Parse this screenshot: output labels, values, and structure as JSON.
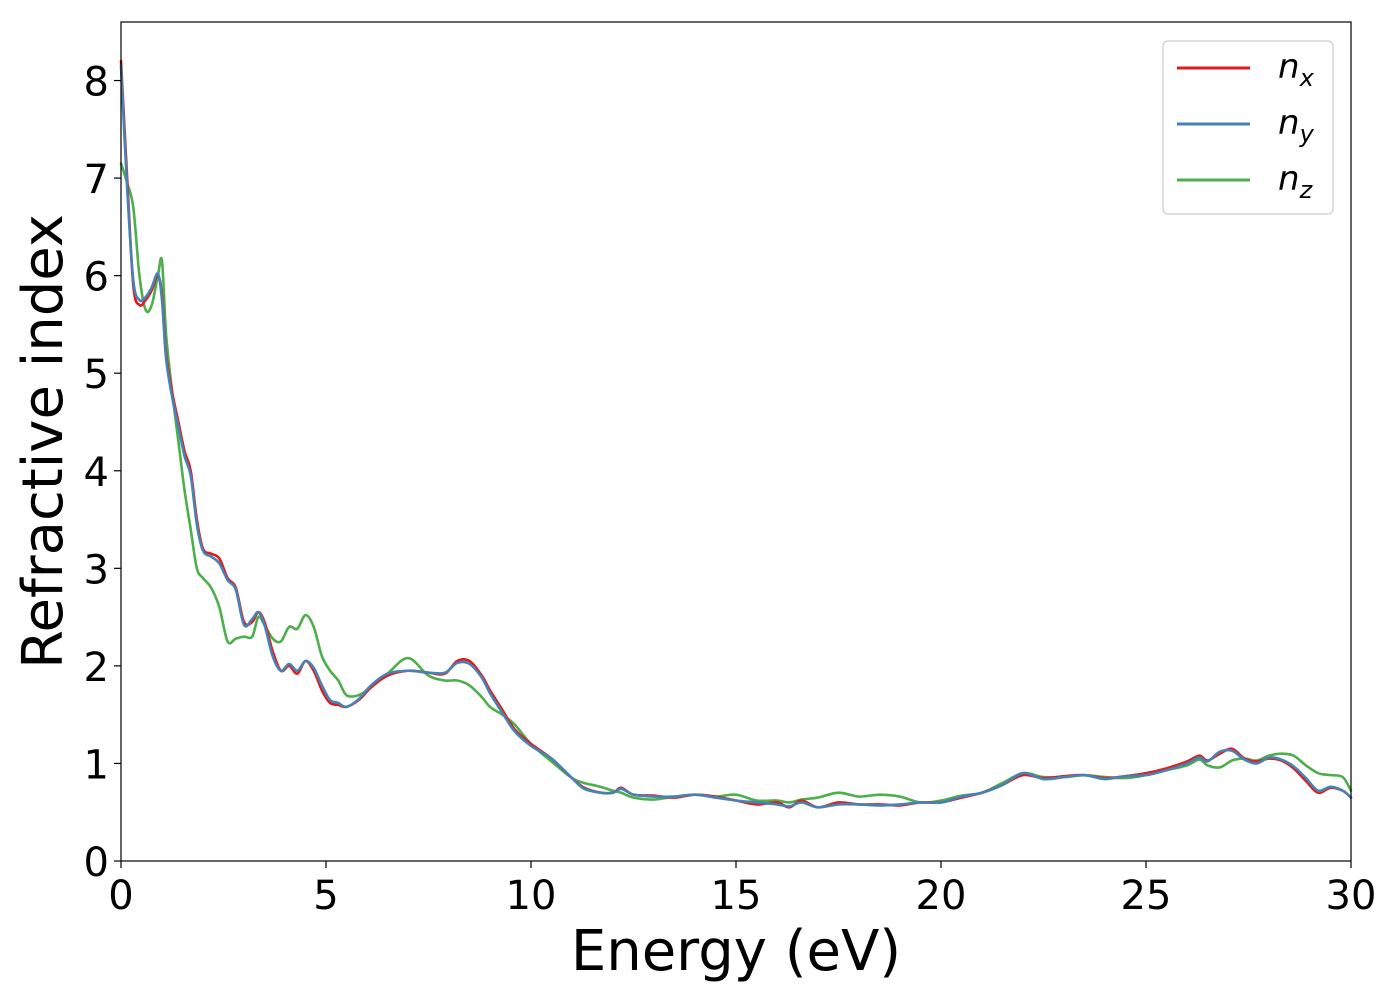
{
  "chart_data": {
    "type": "line",
    "title": "",
    "xlabel": "Energy (eV)",
    "ylabel": "Refractive index",
    "xlim": [
      0,
      30
    ],
    "ylim": [
      0,
      8.6
    ],
    "xticks": [
      0,
      5,
      10,
      15,
      20,
      25,
      30
    ],
    "yticks": [
      0,
      1,
      2,
      3,
      4,
      5,
      6,
      7,
      8
    ],
    "grid": false,
    "legend_position": "top-right",
    "series": [
      {
        "name": "n_x",
        "name_base": "n",
        "name_sub": "x",
        "color": "#e31a1c",
        "x": [
          0,
          0.15,
          0.3,
          0.45,
          0.6,
          0.75,
          0.9,
          1.0,
          1.1,
          1.25,
          1.4,
          1.55,
          1.7,
          1.85,
          2.0,
          2.2,
          2.4,
          2.6,
          2.8,
          3.0,
          3.2,
          3.35,
          3.5,
          3.7,
          3.9,
          4.1,
          4.3,
          4.5,
          4.7,
          4.9,
          5.1,
          5.3,
          5.5,
          5.8,
          6.1,
          6.5,
          7.0,
          7.5,
          7.9,
          8.2,
          8.5,
          8.8,
          9.0,
          9.3,
          9.6,
          10.0,
          10.5,
          11.0,
          11.3,
          11.7,
          12.0,
          12.2,
          12.5,
          13.0,
          13.5,
          14.0,
          14.5,
          15.0,
          15.5,
          16.0,
          16.3,
          16.6,
          17.0,
          17.5,
          18.0,
          18.5,
          19.0,
          19.5,
          20.0,
          20.5,
          21.0,
          21.5,
          22.0,
          22.5,
          23.0,
          23.5,
          24.0,
          24.5,
          25.0,
          25.5,
          26.0,
          26.3,
          26.5,
          26.8,
          27.1,
          27.4,
          27.7,
          28.0,
          28.3,
          28.6,
          28.9,
          29.2,
          29.5,
          29.8,
          30.0
        ],
        "y": [
          8.2,
          7.0,
          5.9,
          5.7,
          5.75,
          5.85,
          6.0,
          5.8,
          5.2,
          4.8,
          4.5,
          4.2,
          4.0,
          3.5,
          3.2,
          3.15,
          3.1,
          2.9,
          2.8,
          2.45,
          2.45,
          2.55,
          2.45,
          2.15,
          1.95,
          2.0,
          1.92,
          2.05,
          1.95,
          1.75,
          1.62,
          1.6,
          1.58,
          1.65,
          1.78,
          1.9,
          1.95,
          1.93,
          1.92,
          2.05,
          2.05,
          1.9,
          1.75,
          1.55,
          1.35,
          1.2,
          1.05,
          0.85,
          0.75,
          0.7,
          0.7,
          0.75,
          0.68,
          0.67,
          0.65,
          0.68,
          0.66,
          0.62,
          0.58,
          0.6,
          0.55,
          0.62,
          0.55,
          0.6,
          0.58,
          0.58,
          0.57,
          0.6,
          0.6,
          0.65,
          0.7,
          0.78,
          0.88,
          0.85,
          0.87,
          0.88,
          0.85,
          0.87,
          0.9,
          0.95,
          1.02,
          1.08,
          1.03,
          1.1,
          1.15,
          1.05,
          1.02,
          1.05,
          1.03,
          0.95,
          0.82,
          0.7,
          0.75,
          0.72,
          0.65
        ]
      },
      {
        "name": "n_y",
        "name_base": "n",
        "name_sub": "y",
        "color": "#4682b4",
        "x": [
          0,
          0.15,
          0.3,
          0.45,
          0.6,
          0.75,
          0.9,
          1.0,
          1.1,
          1.25,
          1.4,
          1.55,
          1.7,
          1.85,
          2.0,
          2.2,
          2.4,
          2.6,
          2.8,
          3.0,
          3.2,
          3.35,
          3.5,
          3.7,
          3.9,
          4.1,
          4.3,
          4.5,
          4.7,
          4.9,
          5.1,
          5.3,
          5.5,
          5.8,
          6.1,
          6.5,
          7.0,
          7.5,
          7.9,
          8.2,
          8.5,
          8.8,
          9.0,
          9.3,
          9.6,
          10.0,
          10.5,
          11.0,
          11.3,
          11.7,
          12.0,
          12.2,
          12.5,
          13.0,
          13.5,
          14.0,
          14.5,
          15.0,
          15.5,
          16.0,
          16.3,
          16.6,
          17.0,
          17.5,
          18.0,
          18.5,
          19.0,
          19.5,
          20.0,
          20.5,
          21.0,
          21.5,
          22.0,
          22.5,
          23.0,
          23.5,
          24.0,
          24.5,
          25.0,
          25.5,
          26.0,
          26.3,
          26.5,
          26.8,
          27.1,
          27.4,
          27.7,
          28.0,
          28.3,
          28.6,
          28.9,
          29.2,
          29.5,
          29.8,
          30.0
        ],
        "y": [
          8.15,
          6.9,
          5.95,
          5.75,
          5.78,
          5.88,
          6.02,
          5.75,
          5.15,
          4.75,
          4.45,
          4.15,
          3.95,
          3.45,
          3.18,
          3.12,
          3.05,
          2.88,
          2.78,
          2.42,
          2.48,
          2.55,
          2.42,
          2.1,
          1.95,
          2.02,
          1.95,
          2.05,
          1.98,
          1.8,
          1.65,
          1.62,
          1.58,
          1.66,
          1.8,
          1.92,
          1.95,
          1.93,
          1.93,
          2.03,
          2.02,
          1.88,
          1.72,
          1.52,
          1.33,
          1.18,
          1.05,
          0.85,
          0.74,
          0.7,
          0.7,
          0.74,
          0.68,
          0.66,
          0.66,
          0.68,
          0.65,
          0.62,
          0.6,
          0.58,
          0.56,
          0.6,
          0.55,
          0.58,
          0.58,
          0.57,
          0.58,
          0.6,
          0.6,
          0.66,
          0.7,
          0.78,
          0.9,
          0.84,
          0.86,
          0.88,
          0.84,
          0.87,
          0.88,
          0.93,
          1.0,
          1.06,
          1.02,
          1.12,
          1.13,
          1.04,
          1.0,
          1.06,
          1.04,
          0.97,
          0.85,
          0.72,
          0.76,
          0.72,
          0.65
        ]
      },
      {
        "name": "n_z",
        "name_base": "n",
        "name_sub": "z",
        "color": "#4daf4a",
        "x": [
          0,
          0.15,
          0.3,
          0.45,
          0.6,
          0.75,
          0.9,
          1.0,
          1.1,
          1.25,
          1.4,
          1.55,
          1.7,
          1.85,
          2.0,
          2.2,
          2.4,
          2.6,
          2.8,
          3.0,
          3.2,
          3.35,
          3.5,
          3.7,
          3.9,
          4.1,
          4.3,
          4.5,
          4.7,
          4.9,
          5.1,
          5.3,
          5.5,
          5.8,
          6.1,
          6.5,
          7.0,
          7.5,
          7.9,
          8.2,
          8.5,
          8.8,
          9.0,
          9.3,
          9.6,
          10.0,
          10.5,
          11.0,
          11.3,
          11.7,
          12.0,
          12.2,
          12.5,
          13.0,
          13.5,
          14.0,
          14.5,
          15.0,
          15.5,
          16.0,
          16.3,
          16.6,
          17.0,
          17.5,
          18.0,
          18.5,
          19.0,
          19.5,
          20.0,
          20.5,
          21.0,
          21.5,
          22.0,
          22.5,
          23.0,
          23.5,
          24.0,
          24.5,
          25.0,
          25.5,
          26.0,
          26.3,
          26.5,
          26.8,
          27.1,
          27.4,
          27.7,
          28.0,
          28.3,
          28.6,
          28.9,
          29.2,
          29.5,
          29.8,
          30.0
        ],
        "y": [
          7.15,
          6.95,
          6.7,
          6.0,
          5.65,
          5.7,
          6.0,
          6.15,
          5.4,
          4.8,
          4.3,
          3.8,
          3.4,
          3.0,
          2.9,
          2.8,
          2.6,
          2.25,
          2.28,
          2.3,
          2.3,
          2.5,
          2.42,
          2.28,
          2.25,
          2.4,
          2.38,
          2.52,
          2.4,
          2.1,
          1.95,
          1.85,
          1.7,
          1.7,
          1.78,
          1.92,
          2.08,
          1.9,
          1.85,
          1.85,
          1.8,
          1.68,
          1.58,
          1.5,
          1.4,
          1.2,
          1.02,
          0.85,
          0.8,
          0.76,
          0.72,
          0.7,
          0.65,
          0.63,
          0.66,
          0.68,
          0.66,
          0.68,
          0.62,
          0.62,
          0.6,
          0.63,
          0.65,
          0.7,
          0.66,
          0.68,
          0.66,
          0.6,
          0.62,
          0.67,
          0.7,
          0.8,
          0.9,
          0.86,
          0.86,
          0.88,
          0.86,
          0.85,
          0.88,
          0.93,
          0.98,
          1.04,
          0.98,
          0.96,
          1.03,
          1.05,
          1.03,
          1.08,
          1.1,
          1.08,
          0.98,
          0.9,
          0.88,
          0.86,
          0.72
        ]
      }
    ]
  }
}
